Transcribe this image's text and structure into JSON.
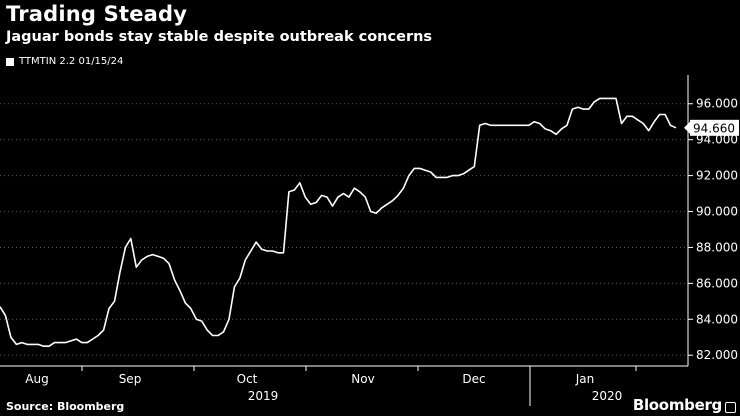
{
  "header": {
    "title": "Trading Steady",
    "subtitle": "Jaguar bonds stay stable despite outbreak concerns"
  },
  "footer": {
    "source": "Source: Bloomberg",
    "brand": "Bloomberg"
  },
  "colors": {
    "background": "#000000",
    "line": "#ffffff",
    "grid": "#555555"
  },
  "chart_data": {
    "type": "line",
    "title": "Trading Steady",
    "subtitle": "Jaguar bonds stay stable despite outbreak concerns",
    "grid": true,
    "legend": "top-left",
    "ylim": [
      81.4,
      97.6
    ],
    "y_ticks": [
      82,
      84,
      86,
      88,
      90,
      92,
      94,
      96
    ],
    "y_tick_labels": [
      "82.000",
      "84.000",
      "86.000",
      "88.000",
      "90.000",
      "92.000",
      "94.000",
      "96.000"
    ],
    "month_ticks": [
      "Aug",
      "Sep",
      "Oct",
      "Nov",
      "Dec",
      "Jan"
    ],
    "year_ticks": [
      "2019",
      "2020"
    ],
    "last_value_label": "94.660",
    "series": [
      {
        "name": "TTMTIN 2.2 01/15/24",
        "values": [
          84.7,
          84.2,
          83.0,
          82.6,
          82.7,
          82.6,
          82.6,
          82.6,
          82.5,
          82.5,
          82.7,
          82.7,
          82.7,
          82.8,
          82.9,
          82.7,
          82.7,
          82.9,
          83.1,
          83.4,
          84.6,
          85.0,
          86.6,
          88.0,
          88.5,
          86.9,
          87.3,
          87.5,
          87.6,
          87.5,
          87.4,
          87.1,
          86.2,
          85.6,
          84.9,
          84.6,
          84.0,
          83.9,
          83.4,
          83.1,
          83.1,
          83.3,
          84.0,
          85.8,
          86.3,
          87.3,
          87.8,
          88.3,
          87.9,
          87.8,
          87.8,
          87.7,
          87.7,
          91.1,
          91.2,
          91.6,
          90.8,
          90.4,
          90.5,
          90.9,
          90.8,
          90.3,
          90.8,
          91.0,
          90.8,
          91.3,
          91.1,
          90.8,
          90.0,
          89.9,
          90.2,
          90.4,
          90.6,
          90.9,
          91.3,
          92.0,
          92.4,
          92.4,
          92.3,
          92.2,
          91.9,
          91.9,
          91.9,
          92.0,
          92.0,
          92.1,
          92.3,
          92.5,
          94.8,
          94.9,
          94.8,
          94.8,
          94.8,
          94.8,
          94.8,
          94.8,
          94.8,
          94.8,
          95.0,
          94.9,
          94.6,
          94.5,
          94.3,
          94.6,
          94.8,
          95.7,
          95.8,
          95.7,
          95.7,
          96.1,
          96.3,
          96.3,
          96.3,
          96.3,
          94.9,
          95.3,
          95.3,
          95.1,
          94.9,
          94.5,
          95.0,
          95.4,
          95.4,
          94.8,
          94.66
        ]
      }
    ]
  }
}
